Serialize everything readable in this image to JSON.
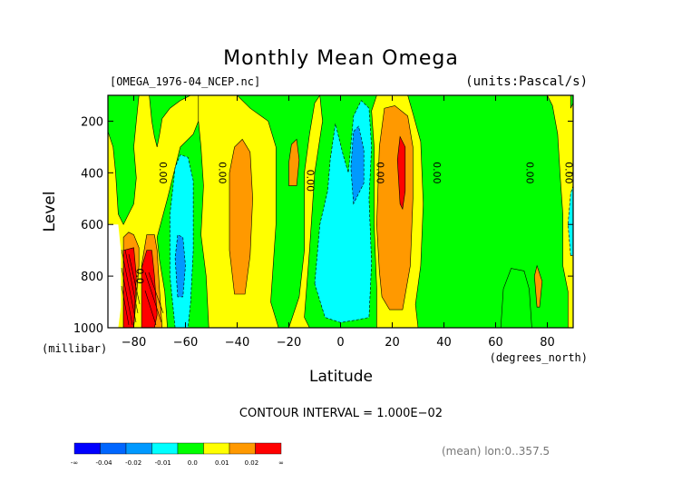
{
  "chart_data": {
    "type": "contour",
    "title": "Monthly Mean Omega",
    "file_label": "[OMEGA_1976-04_NCEP.nc]",
    "units_label": "(units:Pascal/s)",
    "xlabel": "Latitude",
    "xunit": "(degrees_north)",
    "ylabel": "Level",
    "yunit": "(millibar)",
    "xlim": [
      -90,
      90
    ],
    "ylim": [
      1000,
      100
    ],
    "x_ticks": [
      -80,
      -60,
      -40,
      -20,
      0,
      20,
      40,
      60,
      80
    ],
    "x_tick_labels": [
      "−80",
      "−60",
      "−40",
      "−20",
      "0",
      "20",
      "40",
      "60",
      "80"
    ],
    "y_ticks": [
      200,
      400,
      600,
      800,
      1000
    ],
    "y_tick_labels": [
      "200",
      "400",
      "600",
      "800",
      "1000"
    ],
    "contour_interval_text": "CONTOUR INTERVAL = 1.000E−02",
    "contour_labels": [
      {
        "text": "0.00",
        "lat": -70,
        "level": 400
      },
      {
        "text": "0.00",
        "lat": -47,
        "level": 400
      },
      {
        "text": "0.00",
        "lat": -13,
        "level": 430
      },
      {
        "text": "0.00",
        "lat": 14,
        "level": 400
      },
      {
        "text": "0.00",
        "lat": 36,
        "level": 400
      },
      {
        "text": "0.00",
        "lat": 72,
        "level": 400
      },
      {
        "text": "0.00",
        "lat": 87,
        "level": 400
      },
      {
        "text": "0.0",
        "lat": -79,
        "level": 800
      }
    ],
    "regions": [
      {
        "color": "#ff9900",
        "pts": [
          [
            -84,
            1000
          ],
          [
            -84,
            650
          ],
          [
            -82,
            630
          ],
          [
            -80,
            640
          ],
          [
            -78,
            690
          ],
          [
            -78,
            760
          ],
          [
            -80,
            1000
          ]
        ]
      },
      {
        "color": "#ff9900",
        "pts": [
          [
            -76,
            1000
          ],
          [
            -77,
            760
          ],
          [
            -75,
            640
          ],
          [
            -72,
            640
          ],
          [
            -71,
            700
          ],
          [
            -70,
            860
          ],
          [
            -69,
            1000
          ]
        ]
      },
      {
        "color": "#ff0000",
        "pts": [
          [
            -84,
            1000
          ],
          [
            -84,
            700
          ],
          [
            -80,
            690
          ],
          [
            -79,
            800
          ],
          [
            -80,
            1000
          ]
        ]
      },
      {
        "color": "#ff0000",
        "pts": [
          [
            -77,
            1000
          ],
          [
            -77,
            770
          ],
          [
            -75,
            700
          ],
          [
            -73,
            700
          ],
          [
            -72,
            800
          ],
          [
            -71,
            950
          ],
          [
            -72,
            1000
          ]
        ]
      },
      {
        "color": "#00ffff",
        "pts": [
          [
            -64,
            1000
          ],
          [
            -66,
            800
          ],
          [
            -66,
            560
          ],
          [
            -64,
            380
          ],
          [
            -62,
            330
          ],
          [
            -59,
            340
          ],
          [
            -57,
            430
          ],
          [
            -57,
            700
          ],
          [
            -58,
            900
          ],
          [
            -59,
            1000
          ]
        ]
      },
      {
        "color": "#0099ff",
        "pts": [
          [
            -63,
            880
          ],
          [
            -64,
            730
          ],
          [
            -63,
            640
          ],
          [
            -61,
            650
          ],
          [
            -60,
            760
          ],
          [
            -61,
            880
          ]
        ]
      },
      {
        "color": "#ff9900",
        "pts": [
          [
            -41,
            870
          ],
          [
            -43,
            700
          ],
          [
            -43,
            400
          ],
          [
            -41,
            300
          ],
          [
            -38,
            270
          ],
          [
            -35,
            320
          ],
          [
            -34,
            500
          ],
          [
            -35,
            720
          ],
          [
            -37,
            870
          ]
        ]
      },
      {
        "color": "#ff9900",
        "pts": [
          [
            -20,
            450
          ],
          [
            -20,
            360
          ],
          [
            -19,
            290
          ],
          [
            -17,
            270
          ],
          [
            -16,
            350
          ],
          [
            -17,
            450
          ]
        ]
      },
      {
        "color": "#00ffff",
        "pts": [
          [
            -10,
            830
          ],
          [
            -8,
            600
          ],
          [
            -5,
            470
          ],
          [
            -4,
            350
          ],
          [
            -2,
            210
          ],
          [
            1,
            330
          ],
          [
            3,
            400
          ],
          [
            5,
            180
          ],
          [
            8,
            120
          ],
          [
            11,
            150
          ],
          [
            12,
            300
          ],
          [
            11,
            500
          ],
          [
            12,
            750
          ],
          [
            11,
            960
          ],
          [
            6,
            970
          ],
          [
            0,
            980
          ],
          [
            -6,
            960
          ]
        ]
      },
      {
        "color": "#0099ff",
        "pts": [
          [
            5,
            520
          ],
          [
            4,
            380
          ],
          [
            5,
            240
          ],
          [
            7,
            220
          ],
          [
            9,
            310
          ],
          [
            9,
            440
          ]
        ]
      },
      {
        "color": "#ff9900",
        "pts": [
          [
            15,
            780
          ],
          [
            14,
            600
          ],
          [
            15,
            300
          ],
          [
            17,
            150
          ],
          [
            21,
            140
          ],
          [
            26,
            180
          ],
          [
            28,
            300
          ],
          [
            28,
            500
          ],
          [
            27,
            760
          ],
          [
            24,
            930
          ],
          [
            19,
            930
          ],
          [
            16,
            880
          ]
        ]
      },
      {
        "color": "#ff0000",
        "pts": [
          [
            23,
            520
          ],
          [
            22,
            350
          ],
          [
            23,
            260
          ],
          [
            25,
            300
          ],
          [
            25,
            470
          ],
          [
            24,
            540
          ]
        ]
      },
      {
        "color": "#ff9900",
        "pts": [
          [
            76,
            920
          ],
          [
            75,
            800
          ],
          [
            76,
            760
          ],
          [
            78,
            820
          ],
          [
            77,
            920
          ]
        ]
      },
      {
        "color": "#00ff00",
        "pts": [
          [
            62,
            1000
          ],
          [
            63,
            850
          ],
          [
            66,
            770
          ],
          [
            71,
            780
          ],
          [
            73,
            850
          ],
          [
            74,
            1000
          ]
        ]
      },
      {
        "color": "#00ffff",
        "pts": [
          [
            89,
            720
          ],
          [
            88,
            600
          ],
          [
            89,
            480
          ],
          [
            90,
            450
          ],
          [
            90,
            720
          ]
        ]
      },
      {
        "color": "#ffffff",
        "pts": [
          [
            -90,
            1000
          ],
          [
            -90,
            600
          ],
          [
            -86,
            600
          ],
          [
            -85,
            700
          ],
          [
            -85,
            920
          ],
          [
            -86,
            1000
          ]
        ]
      }
    ]
  },
  "colorbar": {
    "colors": [
      "#0000ff",
      "#0066ff",
      "#0099ff",
      "#00ffff",
      "#00ff00",
      "#ffff00",
      "#ff9900",
      "#ff0000"
    ],
    "labels": [
      "-∞",
      "-0.04",
      "-0.02",
      "-0.01",
      "0.0",
      "0.01",
      "0.02",
      "∞"
    ]
  },
  "footer": {
    "mean_text": "(mean) lon:0..357.5"
  }
}
